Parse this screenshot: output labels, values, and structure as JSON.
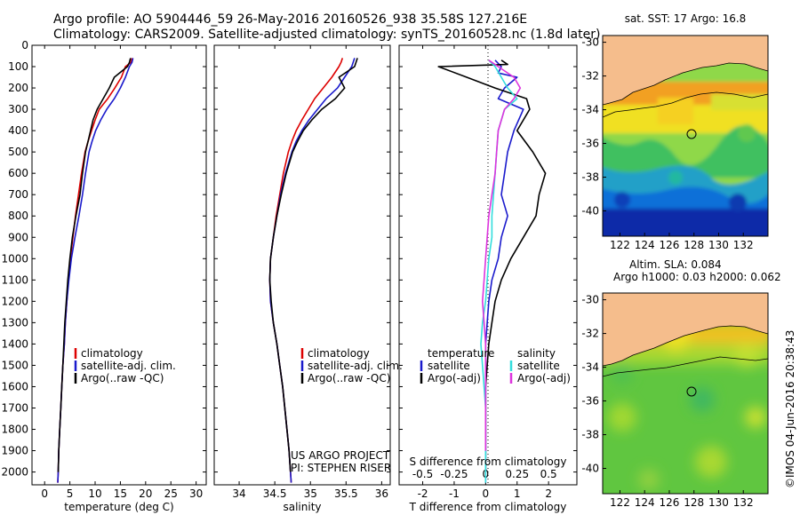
{
  "header": {
    "line1": "Argo profile: AO 5904446_59 26-May-2016 20160526_938 35.58S 127.216E",
    "line2": "Climatology: CARS2009. Satellite-adjusted climatology: synTS_20160528.nc (1.8d later)"
  },
  "credit": {
    "project": "US ARGO PROJECT",
    "pi": "PI: STEPHEN RISER",
    "imos": "©IMOS 04-Jun-2016 20:38:43"
  },
  "colors": {
    "clim": "#dd0000",
    "sat": "#1a1acc",
    "argo": "#000000",
    "sat_s": "#33dddd",
    "argo_s": "#dd33dd",
    "land": "#f5bd8c"
  },
  "legend_ts": {
    "clim": "climatology",
    "sat": "satellite-adj. clim.",
    "argo": "Argo(..raw -QC)"
  },
  "legend_diff": {
    "temp_title": "temperature",
    "sal_title": "salinity",
    "sat": "satellite",
    "argo": "Argo(-adj)"
  },
  "chart_data": [
    {
      "type": "line",
      "name": "temperature profile",
      "xlabel": "temperature (deg C)",
      "xticks": [
        "0",
        "5",
        "10",
        "15",
        "20",
        "25",
        "30"
      ],
      "xlim": [
        -2.5,
        32
      ],
      "ylim": [
        0,
        2060
      ],
      "yticks": [
        "0",
        "100",
        "200",
        "300",
        "400",
        "500",
        "600",
        "700",
        "800",
        "900",
        "1000",
        "1100",
        "1200",
        "1300",
        "1400",
        "1500",
        "1600",
        "1700",
        "1800",
        "1900",
        "2000"
      ],
      "series": [
        {
          "name": "climatology",
          "color": "#dd0000",
          "x": [
            17.3,
            17.1,
            16.0,
            15.2,
            13.9,
            12.5,
            10.8,
            10.0,
            9.3,
            8.6,
            8.0,
            7.3,
            6.7,
            6.1,
            5.6,
            5.1,
            4.7,
            4.4,
            4.1,
            3.9,
            3.6,
            3.4,
            3.2,
            3.0,
            2.8,
            2.7,
            2.6
          ],
          "y": [
            60,
            80,
            100,
            150,
            200,
            250,
            300,
            350,
            400,
            450,
            500,
            600,
            700,
            800,
            900,
            1000,
            1100,
            1200,
            1300,
            1400,
            1500,
            1600,
            1700,
            1800,
            1900,
            2000,
            2050
          ]
        },
        {
          "name": "satellite-adj. clim.",
          "color": "#1a1acc",
          "x": [
            17.5,
            17.3,
            16.8,
            16.0,
            15.0,
            13.8,
            12.3,
            11.1,
            10.1,
            9.4,
            8.8,
            8.1,
            7.5,
            6.8,
            6.0,
            5.3,
            4.8,
            4.4,
            4.1,
            3.9,
            3.6,
            3.4,
            3.2,
            3.0,
            2.8,
            2.7,
            2.6
          ],
          "y": [
            60,
            80,
            100,
            150,
            200,
            250,
            300,
            350,
            400,
            450,
            500,
            600,
            700,
            800,
            900,
            1000,
            1100,
            1200,
            1300,
            1400,
            1500,
            1600,
            1700,
            1800,
            1900,
            2000,
            2050
          ]
        },
        {
          "name": "Argo(..raw -QC)",
          "color": "#000000",
          "x": [
            17.0,
            16.8,
            16.4,
            13.8,
            12.8,
            11.6,
            10.4,
            9.6,
            9.1,
            8.6,
            8.1,
            7.5,
            7.0,
            6.2,
            5.5,
            5.0,
            4.6,
            4.3,
            4.0,
            3.8,
            3.6,
            3.4,
            3.2,
            3.0,
            2.8,
            2.7
          ],
          "y": [
            60,
            80,
            100,
            150,
            200,
            250,
            300,
            350,
            400,
            450,
            500,
            600,
            700,
            800,
            900,
            1000,
            1100,
            1200,
            1300,
            1400,
            1500,
            1600,
            1700,
            1800,
            1900,
            2000
          ]
        }
      ]
    },
    {
      "type": "line",
      "name": "salinity profile",
      "xlabel": "salinity",
      "xticks": [
        "34",
        "34.5",
        "35",
        "35.5",
        "36"
      ],
      "xlim": [
        33.65,
        36.12
      ],
      "ylim": [
        0,
        2060
      ],
      "series": [
        {
          "name": "climatology",
          "color": "#dd0000",
          "x": [
            35.45,
            35.43,
            35.4,
            35.3,
            35.18,
            35.06,
            34.97,
            34.88,
            34.8,
            34.74,
            34.69,
            34.62,
            34.57,
            34.52,
            34.48,
            34.44,
            34.43,
            34.44,
            34.48,
            34.53,
            34.57,
            34.61,
            34.64,
            34.67,
            34.7,
            34.72,
            34.73
          ],
          "y": [
            60,
            80,
            100,
            150,
            200,
            250,
            300,
            350,
            400,
            450,
            500,
            600,
            700,
            800,
            900,
            1000,
            1100,
            1200,
            1300,
            1400,
            1500,
            1600,
            1700,
            1800,
            1900,
            2000,
            2050
          ]
        },
        {
          "name": "satellite-adj. clim.",
          "color": "#1a1acc",
          "x": [
            35.62,
            35.6,
            35.58,
            35.48,
            35.38,
            35.22,
            35.1,
            34.98,
            34.88,
            34.8,
            34.74,
            34.65,
            34.58,
            34.53,
            34.48,
            34.44,
            34.43,
            34.44,
            34.48,
            34.53,
            34.57,
            34.61,
            34.64,
            34.67,
            34.7,
            34.72,
            34.73
          ],
          "y": [
            60,
            80,
            100,
            150,
            200,
            250,
            300,
            350,
            400,
            450,
            500,
            600,
            700,
            800,
            900,
            1000,
            1100,
            1200,
            1300,
            1400,
            1500,
            1600,
            1700,
            1800,
            1900,
            2000,
            2050
          ]
        },
        {
          "name": "Argo(..raw -QC)",
          "color": "#000000",
          "x": [
            35.66,
            35.64,
            35.62,
            35.4,
            35.48,
            35.35,
            35.16,
            35.02,
            34.9,
            34.82,
            34.75,
            34.66,
            34.59,
            34.53,
            34.48,
            34.44,
            34.43,
            34.45,
            34.48,
            34.53,
            34.57,
            34.61,
            34.64,
            34.67,
            34.7,
            34.72
          ],
          "y": [
            60,
            80,
            100,
            150,
            200,
            250,
            300,
            350,
            400,
            450,
            500,
            600,
            700,
            800,
            900,
            1000,
            1100,
            1200,
            1300,
            1400,
            1500,
            1600,
            1700,
            1800,
            1900,
            2000
          ]
        }
      ]
    },
    {
      "type": "line",
      "name": "difference from climatology",
      "xlabel": "T difference from climatology",
      "xticks": [
        "-2",
        "-1",
        "0",
        "1",
        "2"
      ],
      "x2label": "S difference from climatology",
      "x2ticks": [
        "-0.5",
        "-0.25",
        "0",
        "0.25",
        "0.5"
      ],
      "xlim": [
        -2.75,
        2.9
      ],
      "ylim": [
        0,
        2060
      ],
      "series": [
        {
          "name": "temperature satellite",
          "color": "#1a1acc",
          "x": [
            0.3,
            0.5,
            0.4,
            1.0,
            0.6,
            0.4,
            1.2,
            0.9,
            0.7,
            0.6,
            0.5,
            0.7,
            0.5,
            0.4,
            0.2,
            0.1,
            0.05,
            0.0,
            0.0,
            0.0,
            0.0,
            0.0,
            0.0,
            0.0,
            0.0
          ],
          "y": [
            70,
            100,
            130,
            150,
            200,
            250,
            300,
            400,
            500,
            600,
            700,
            800,
            900,
            1000,
            1100,
            1200,
            1300,
            1400,
            1500,
            1600,
            1700,
            1800,
            1900,
            2000,
            2050
          ]
        },
        {
          "name": "temperature Argo(-adj)",
          "color": "#000000",
          "x": [
            0.5,
            0.7,
            -1.5,
            -0.6,
            0.3,
            1.3,
            1.4,
            1.0,
            1.5,
            1.9,
            1.7,
            1.6,
            1.2,
            0.8,
            0.5,
            0.3,
            0.2,
            0.1,
            0.05,
            0.0,
            0.0,
            0.0,
            0.0,
            0.0
          ],
          "y": [
            70,
            90,
            100,
            150,
            200,
            250,
            300,
            400,
            500,
            600,
            700,
            800,
            900,
            1000,
            1100,
            1200,
            1300,
            1400,
            1500,
            1600,
            1700,
            1800,
            1900,
            2000
          ]
        },
        {
          "name": "salinity satellite",
          "color": "#33dddd",
          "x": [
            0.1,
            0.3,
            0.5,
            0.7,
            1.0,
            0.6,
            0.4,
            0.35,
            0.3,
            0.25,
            0.2,
            0.2,
            0.1,
            0.05,
            0.0,
            -0.1,
            -0.15,
            -0.1,
            -0.05,
            0.0,
            0.0,
            0.0,
            0.0,
            0.0
          ],
          "y": [
            70,
            100,
            150,
            200,
            250,
            300,
            400,
            500,
            600,
            700,
            800,
            900,
            1000,
            1100,
            1200,
            1300,
            1400,
            1500,
            1600,
            1700,
            1800,
            1900,
            2000,
            2050
          ]
        },
        {
          "name": "salinity Argo(-adj)",
          "color": "#dd33dd",
          "x": [
            0.1,
            0.4,
            0.9,
            1.1,
            0.9,
            0.6,
            0.4,
            0.35,
            0.3,
            0.2,
            0.1,
            0.05,
            0.0,
            -0.05,
            -0.1,
            -0.05,
            0.0,
            0.0,
            0.0,
            0.0,
            0.0,
            0.0
          ],
          "y": [
            70,
            100,
            150,
            200,
            250,
            300,
            400,
            500,
            600,
            700,
            800,
            900,
            1000,
            1100,
            1200,
            1300,
            1400,
            1500,
            1600,
            1700,
            1800,
            1900
          ]
        }
      ]
    },
    {
      "type": "heatmap",
      "name": "sat SST map",
      "title": "sat. SST: 17 Argo: 16.8",
      "xticks": [
        "122",
        "124",
        "126",
        "128",
        "130",
        "132"
      ],
      "yticks": [
        "-30",
        "-32",
        "-34",
        "-36",
        "-38",
        "-40"
      ],
      "marker": {
        "lon": 127.216,
        "lat": -35.58
      }
    },
    {
      "type": "heatmap",
      "name": "altimetry SLA map",
      "title_line1": "Altim. SLA: 0.084",
      "title_line2": "Argo h1000: 0.03 h2000: 0.062",
      "xticks": [
        "122",
        "124",
        "126",
        "128",
        "130",
        "132"
      ],
      "yticks": [
        "-30",
        "-32",
        "-34",
        "-36",
        "-38",
        "-40"
      ],
      "marker": {
        "lon": 127.216,
        "lat": -35.58
      }
    }
  ]
}
